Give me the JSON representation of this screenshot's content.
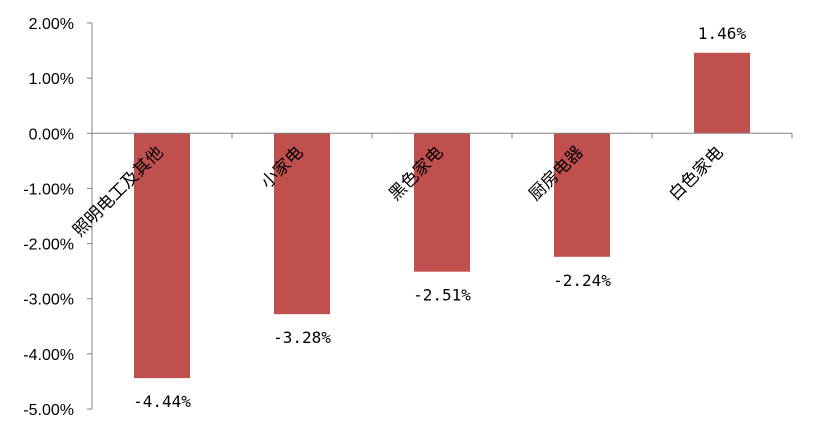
{
  "chart_data": {
    "type": "bar",
    "categories": [
      "照明电工及其他",
      "小家电",
      "黑色家电",
      "厨房电器",
      "白色家电"
    ],
    "values": [
      -4.44,
      -3.28,
      -2.51,
      -2.24,
      1.46
    ],
    "data_labels": [
      "-4.44%",
      "-3.28%",
      "-2.51%",
      "-2.24%",
      "1.46%"
    ],
    "y_ticks": [
      "2.00%",
      "1.00%",
      "0.00%",
      "-1.00%",
      "-2.00%",
      "-3.00%",
      "-4.00%",
      "-5.00%"
    ],
    "y_tick_values": [
      2,
      1,
      0,
      -1,
      -2,
      -3,
      -4,
      -5
    ],
    "ylim": [
      -5,
      2
    ],
    "title": "",
    "xlabel": "",
    "ylabel": "",
    "grid": false,
    "legend": "none",
    "bar_color": "#C0504D",
    "axis_color": "#808080"
  }
}
